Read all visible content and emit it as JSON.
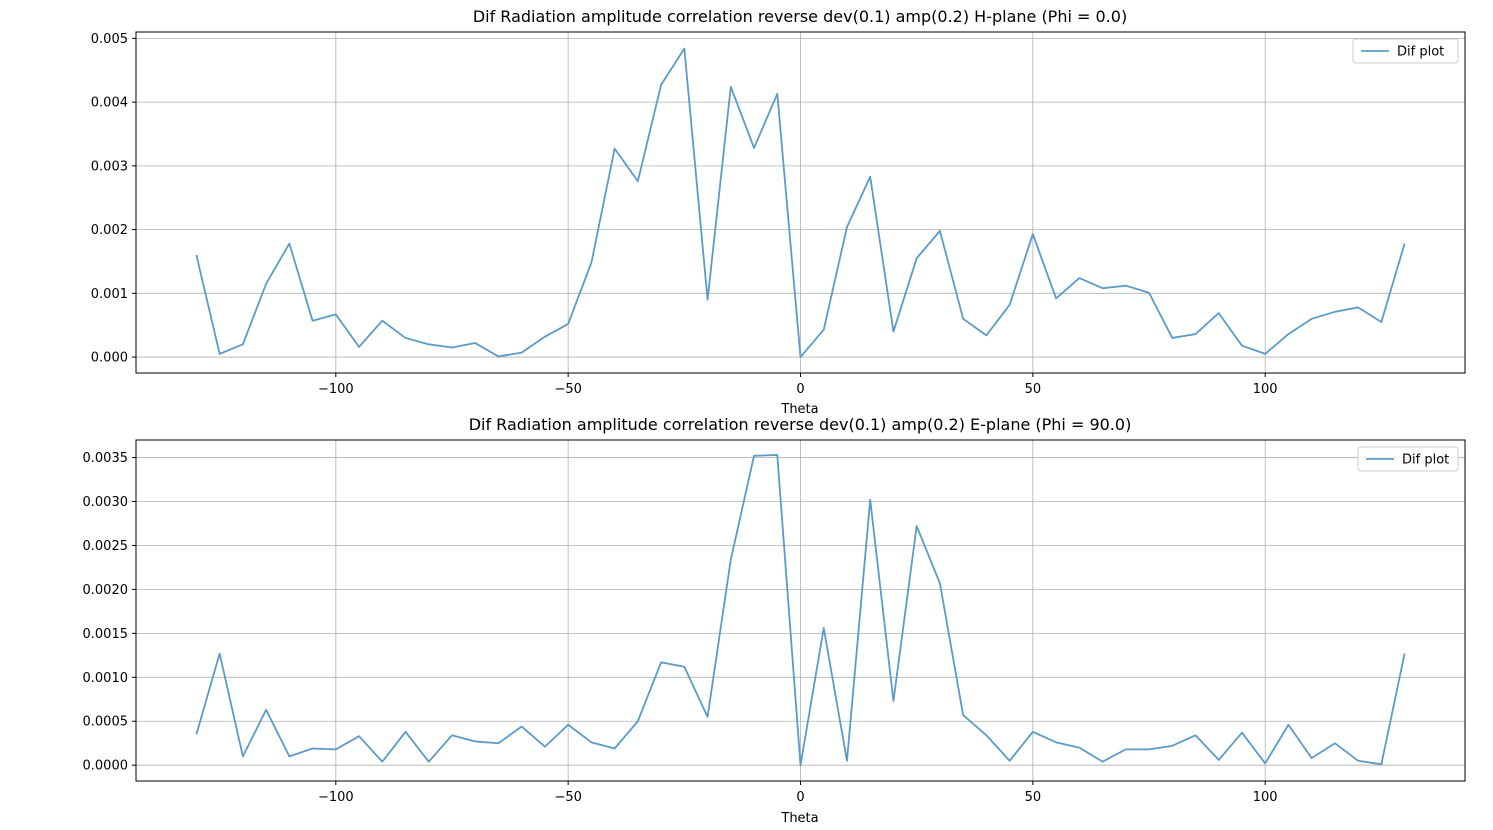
{
  "chart_data": [
    {
      "type": "line",
      "title": "Dif Radiation amplitude correlation reverse dev(0.1) amp(0.2) H-plane (Phi = 0.0)",
      "xlabel": "Theta",
      "ylabel": "",
      "xlim": [
        -143,
        143
      ],
      "ylim": [
        -0.00025,
        0.0051
      ],
      "xticks": [
        -100,
        -50,
        0,
        50,
        100
      ],
      "xtick_labels": [
        "−100",
        "−50",
        "0",
        "50",
        "100"
      ],
      "yticks": [
        0.0,
        0.001,
        0.002,
        0.003,
        0.004,
        0.005
      ],
      "ytick_labels": [
        "0.000",
        "0.001",
        "0.002",
        "0.003",
        "0.004",
        "0.005"
      ],
      "grid": true,
      "legend_position": "upper right",
      "line_color": "#5b9bc8",
      "series": [
        {
          "name": "Dif plot",
          "x": [
            -130,
            -125,
            -120,
            -115,
            -110,
            -105,
            -100,
            -95,
            -90,
            -85,
            -80,
            -75,
            -70,
            -65,
            -60,
            -55,
            -50,
            -45,
            -40,
            -35,
            -30,
            -25,
            -20,
            -15,
            -10,
            -5,
            0,
            5,
            10,
            15,
            20,
            25,
            30,
            35,
            40,
            45,
            50,
            55,
            60,
            65,
            70,
            75,
            80,
            85,
            90,
            95,
            100,
            105,
            110,
            115,
            120,
            125,
            130
          ],
          "y": [
            0.0016,
            5e-05,
            0.0002,
            0.00115,
            0.00178,
            0.00057,
            0.00067,
            0.00016,
            0.00057,
            0.0003,
            0.0002,
            0.00015,
            0.00022,
            1e-05,
            7e-05,
            0.00032,
            0.00052,
            0.00148,
            0.00327,
            0.00276,
            0.00427,
            0.00484,
            0.0009,
            0.00424,
            0.00328,
            0.00413,
            0.0,
            0.00043,
            0.00204,
            0.00283,
            0.0004,
            0.00155,
            0.00198,
            0.0006,
            0.00034,
            0.00082,
            0.00193,
            0.00092,
            0.00124,
            0.00108,
            0.00112,
            0.00101,
            0.0003,
            0.00036,
            0.00069,
            0.00018,
            5e-05,
            0.00036,
            0.0006,
            0.00071,
            0.00078,
            0.00055,
            0.00178
          ]
        }
      ]
    },
    {
      "type": "line",
      "title": "Dif Radiation amplitude correlation reverse dev(0.1) amp(0.2) E-plane (Phi = 90.0)",
      "xlabel": "Theta",
      "ylabel": "",
      "xlim": [
        -143,
        143
      ],
      "ylim": [
        -0.00018,
        0.0037
      ],
      "xticks": [
        -100,
        -50,
        0,
        50,
        100
      ],
      "xtick_labels": [
        "−100",
        "−50",
        "0",
        "50",
        "100"
      ],
      "yticks": [
        0.0,
        0.0005,
        0.001,
        0.0015,
        0.002,
        0.0025,
        0.003,
        0.0035
      ],
      "ytick_labels": [
        "0.0000",
        "0.0005",
        "0.0010",
        "0.0015",
        "0.0020",
        "0.0025",
        "0.0030",
        "0.0035"
      ],
      "grid": true,
      "legend_position": "upper right",
      "line_color": "#5b9bc8",
      "series": [
        {
          "name": "Dif plot",
          "x": [
            -130,
            -125,
            -120,
            -115,
            -110,
            -105,
            -100,
            -95,
            -90,
            -85,
            -80,
            -75,
            -70,
            -65,
            -60,
            -55,
            -50,
            -45,
            -40,
            -35,
            -30,
            -25,
            -20,
            -15,
            -10,
            -5,
            0,
            5,
            10,
            15,
            20,
            25,
            30,
            35,
            40,
            45,
            50,
            55,
            60,
            65,
            70,
            75,
            80,
            85,
            90,
            95,
            100,
            105,
            110,
            115,
            120,
            125,
            130
          ],
          "y": [
            0.00035,
            0.00127,
            0.0001,
            0.00063,
            0.0001,
            0.00019,
            0.00018,
            0.00033,
            4e-05,
            0.00038,
            4e-05,
            0.00034,
            0.00027,
            0.00025,
            0.00044,
            0.00021,
            0.00046,
            0.00026,
            0.00019,
            0.0005,
            0.00117,
            0.00112,
            0.00055,
            0.00234,
            0.00352,
            0.00353,
            0.0,
            0.00156,
            5e-05,
            0.00302,
            0.00073,
            0.00272,
            0.00207,
            0.00057,
            0.00034,
            5e-05,
            0.00038,
            0.00026,
            0.0002,
            4e-05,
            0.00018,
            0.00018,
            0.00022,
            0.00034,
            6e-05,
            0.00037,
            2e-05,
            0.00046,
            8e-05,
            0.00025,
            5e-05,
            1e-05,
            0.00127
          ]
        }
      ]
    }
  ]
}
